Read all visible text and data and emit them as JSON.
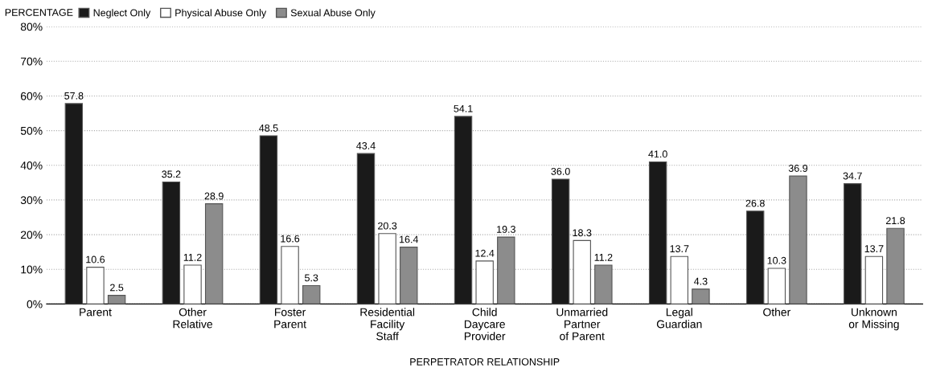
{
  "chart_data": {
    "type": "bar",
    "ylabel": "PERCENTAGE",
    "xlabel": "PERPETRATOR RELATIONSHIP",
    "categories": [
      "Parent",
      "Other\nRelative",
      "Foster\nParent",
      "Residential\nFacility\nStaff",
      "Child\nDaycare\nProvider",
      "Unmarried\nPartner\nof Parent",
      "Legal\nGuardian",
      "Other",
      "Unknown\nor Missing"
    ],
    "series": [
      {
        "name": "Neglect Only",
        "color": "#1a1a1a",
        "values": [
          57.8,
          35.2,
          48.5,
          43.4,
          54.1,
          36.0,
          41.0,
          26.8,
          34.7
        ],
        "value_labels": [
          "57.8",
          "35.2",
          "48.5",
          "43.4",
          "54.1",
          "36.0",
          "41.0",
          "26.8",
          "34.7"
        ]
      },
      {
        "name": "Physical Abuse Only",
        "color": "#ffffff",
        "values": [
          10.6,
          11.2,
          16.6,
          20.3,
          12.4,
          18.3,
          13.7,
          10.3,
          13.7
        ],
        "value_labels": [
          "10.6",
          "11.2",
          "16.6",
          "20.3",
          "12.4",
          "18.3",
          "13.7",
          "10.3",
          "13.7"
        ]
      },
      {
        "name": "Sexual Abuse Only",
        "color": "#8c8c8c",
        "values": [
          2.5,
          28.9,
          5.3,
          16.4,
          19.3,
          11.2,
          4.3,
          36.9,
          21.8
        ],
        "value_labels": [
          "2.5",
          "28.9",
          "5.3",
          "16.4",
          "19.3",
          "11.2",
          "4.3",
          "36.9",
          "21.8"
        ]
      }
    ],
    "ylim": [
      0,
      80
    ],
    "yticks": [
      {
        "value": 0,
        "label": "0%"
      },
      {
        "value": 10,
        "label": "10%"
      },
      {
        "value": 20,
        "label": "20%"
      },
      {
        "value": 30,
        "label": "30%"
      },
      {
        "value": 40,
        "label": "40%"
      },
      {
        "value": 50,
        "label": "50%"
      },
      {
        "value": 60,
        "label": "60%"
      },
      {
        "value": 70,
        "label": "70%"
      },
      {
        "value": 80,
        "label": "80%"
      }
    ],
    "grid": "y",
    "legend": "top left"
  }
}
